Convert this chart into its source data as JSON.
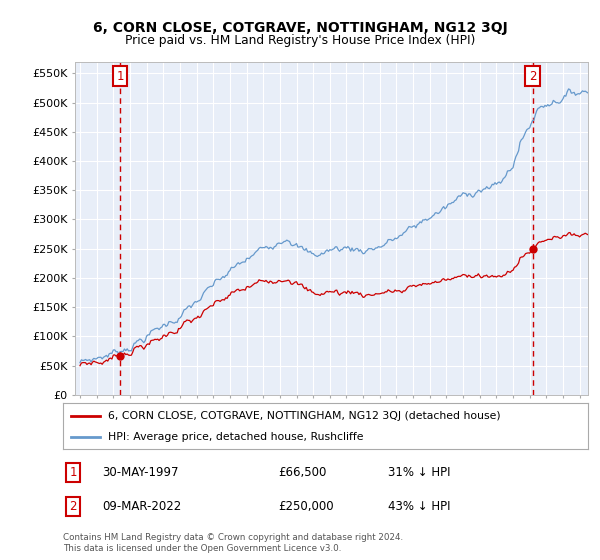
{
  "title": "6, CORN CLOSE, COTGRAVE, NOTTINGHAM, NG12 3QJ",
  "subtitle": "Price paid vs. HM Land Registry's House Price Index (HPI)",
  "legend_property": "6, CORN CLOSE, COTGRAVE, NOTTINGHAM, NG12 3QJ (detached house)",
  "legend_hpi": "HPI: Average price, detached house, Rushcliffe",
  "footnote": "Contains HM Land Registry data © Crown copyright and database right 2024.\nThis data is licensed under the Open Government Licence v3.0.",
  "sale1_label": "1",
  "sale1_date_str": "30-MAY-1997",
  "sale1_price": 66500,
  "sale1_year": 1997.41,
  "sale1_hpi_pct": "31% ↓ HPI",
  "sale2_label": "2",
  "sale2_date_str": "09-MAR-2022",
  "sale2_price": 250000,
  "sale2_year": 2022.18,
  "sale2_hpi_pct": "43% ↓ HPI",
  "ylim": [
    0,
    570000
  ],
  "xlim_left": 1994.7,
  "xlim_right": 2025.5,
  "yticks": [
    0,
    50000,
    100000,
    150000,
    200000,
    250000,
    300000,
    350000,
    400000,
    450000,
    500000,
    550000
  ],
  "ytick_labels": [
    "£0",
    "£50K",
    "£100K",
    "£150K",
    "£200K",
    "£250K",
    "£300K",
    "£350K",
    "£400K",
    "£450K",
    "£500K",
    "£550K"
  ],
  "xticks": [
    1995,
    1996,
    1997,
    1998,
    1999,
    2000,
    2001,
    2002,
    2003,
    2004,
    2005,
    2006,
    2007,
    2008,
    2009,
    2010,
    2011,
    2012,
    2013,
    2014,
    2015,
    2016,
    2017,
    2018,
    2019,
    2020,
    2021,
    2022,
    2023,
    2024,
    2025
  ],
  "property_color": "#cc0000",
  "hpi_color": "#6699cc",
  "background_color": "#e8eef8",
  "grid_color": "#ffffff",
  "vline_color": "#cc0000",
  "marker_color": "#cc0000",
  "box_color": "#cc0000",
  "hpi_anchor_years": [
    1995.0,
    1996.0,
    1997.0,
    1998.0,
    1999.0,
    2000.0,
    2001.0,
    2002.0,
    2003.0,
    2004.0,
    2005.0,
    2006.0,
    2007.0,
    2007.5,
    2008.0,
    2008.5,
    2009.0,
    2009.5,
    2010.0,
    2011.0,
    2012.0,
    2013.0,
    2014.0,
    2015.0,
    2016.0,
    2017.0,
    2018.0,
    2019.0,
    2020.0,
    2020.5,
    2021.0,
    2021.5,
    2022.0,
    2022.5,
    2023.0,
    2023.5,
    2024.0,
    2025.0
  ],
  "hpi_anchor_values": [
    55000,
    63000,
    72000,
    84000,
    100000,
    118000,
    135000,
    158000,
    185000,
    210000,
    230000,
    250000,
    268000,
    275000,
    258000,
    245000,
    238000,
    242000,
    248000,
    252000,
    248000,
    255000,
    268000,
    285000,
    305000,
    320000,
    340000,
    355000,
    355000,
    370000,
    395000,
    435000,
    460000,
    490000,
    500000,
    505000,
    510000,
    520000
  ]
}
